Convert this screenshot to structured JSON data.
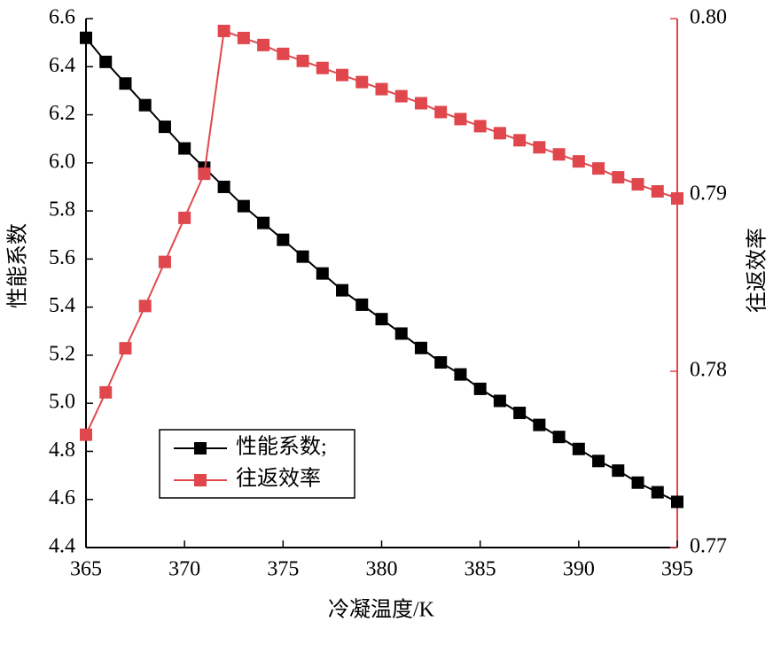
{
  "chart_data": {
    "type": "line",
    "xlabel": "冷凝温度/K",
    "ylabel": "性能系数",
    "y2label": "往返效率",
    "x": [
      365,
      366,
      367,
      368,
      369,
      370,
      371,
      372,
      373,
      374,
      375,
      376,
      377,
      378,
      379,
      380,
      381,
      382,
      383,
      384,
      385,
      386,
      387,
      388,
      389,
      390,
      391,
      392,
      393,
      394,
      395
    ],
    "series": [
      {
        "name": "性能系数;",
        "color": "#000000",
        "axis": "y",
        "values": [
          6.52,
          6.42,
          6.33,
          6.24,
          6.15,
          6.06,
          5.98,
          5.9,
          5.82,
          5.75,
          5.68,
          5.61,
          5.54,
          5.47,
          5.41,
          5.35,
          5.29,
          5.23,
          5.17,
          5.12,
          5.06,
          5.01,
          4.96,
          4.91,
          4.86,
          4.81,
          4.76,
          4.72,
          4.67,
          4.63,
          4.59
        ]
      },
      {
        "name": "往返效率",
        "color": "#e0474c",
        "axis": "y2",
        "values": [
          0.7764,
          0.7788,
          0.7813,
          0.7837,
          0.7862,
          0.7887,
          0.7912,
          0.7993,
          0.7989,
          0.7985,
          0.798,
          0.7976,
          0.7972,
          0.7968,
          0.7964,
          0.796,
          0.7956,
          0.7952,
          0.7947,
          0.7943,
          0.7939,
          0.7935,
          0.7931,
          0.7927,
          0.7923,
          0.7919,
          0.7915,
          0.791,
          0.7906,
          0.7902,
          0.7898
        ]
      }
    ],
    "xlim": [
      365,
      395
    ],
    "xticks": [
      365,
      370,
      375,
      380,
      385,
      390,
      395
    ],
    "ylim": [
      4.4,
      6.6
    ],
    "yticks": [
      4.4,
      4.6,
      4.8,
      {
        "value": 5.0,
        "label": "5.0"
      },
      5.2,
      5.4,
      5.6,
      5.8,
      {
        "value": 6.0,
        "label": "6.0"
      },
      6.2,
      6.4,
      6.6
    ],
    "y2lim": [
      0.77,
      0.8
    ],
    "y2ticks": [
      0.77,
      0.78,
      0.79,
      {
        "value": 0.8,
        "label": "0.80"
      }
    ],
    "y2color": "#e0474c",
    "legend": "lower left"
  }
}
